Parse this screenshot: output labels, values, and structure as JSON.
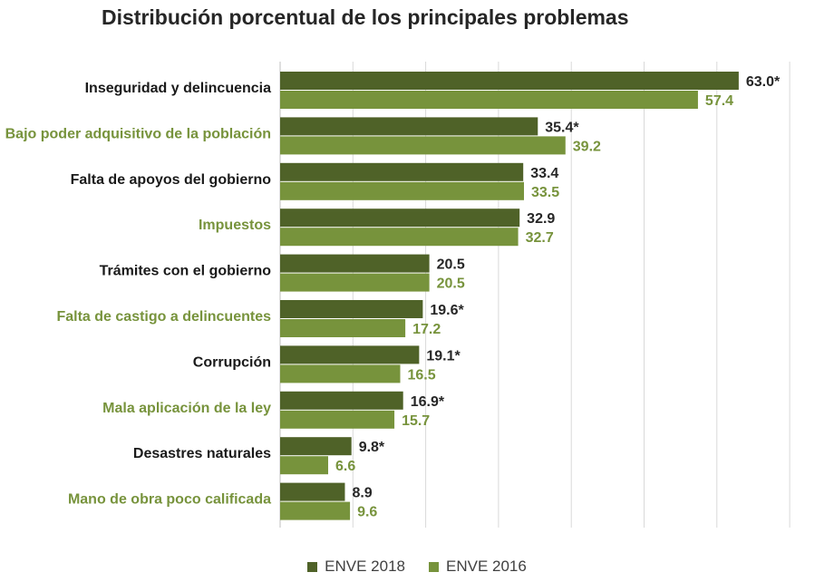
{
  "chart_data": {
    "type": "bar",
    "orientation": "horizontal",
    "title": "Distribución porcentual de los principales problemas",
    "categories": [
      "Inseguridad y delincuencia",
      "Bajo poder adquisitivo de la población",
      "Falta de apoyos del gobierno",
      "Impuestos",
      "Trámites con el gobierno",
      "Falta de castigo a delincuentes",
      "Corrupción",
      "Mala aplicación de la ley",
      "Desastres naturales",
      "Mano de obra poco calificada"
    ],
    "category_colors": [
      "#1a1a1a",
      "#77933c",
      "#1a1a1a",
      "#77933c",
      "#1a1a1a",
      "#77933c",
      "#1a1a1a",
      "#77933c",
      "#1a1a1a",
      "#77933c"
    ],
    "series": [
      {
        "name": "ENVE 2018",
        "color": "#4f6228",
        "label_color": "#262626",
        "values": [
          63.0,
          35.4,
          33.4,
          32.9,
          20.5,
          19.6,
          19.1,
          16.9,
          9.8,
          8.9
        ],
        "labels": [
          "63.0*",
          "35.4*",
          "33.4",
          "32.9",
          "20.5",
          "19.6*",
          "19.1*",
          "16.9*",
          "9.8*",
          "8.9"
        ]
      },
      {
        "name": "ENVE 2016",
        "color": "#77933c",
        "label_color": "#77933c",
        "values": [
          57.4,
          39.2,
          33.5,
          32.7,
          20.5,
          17.2,
          16.5,
          15.7,
          6.6,
          9.6
        ],
        "labels": [
          "57.4",
          "39.2",
          "33.5",
          "32.7",
          "20.5",
          "17.2",
          "16.5",
          "15.7",
          "6.6",
          "9.6"
        ]
      }
    ],
    "xlim": [
      0,
      70
    ],
    "grid": "vertical",
    "legend_position": "bottom"
  }
}
